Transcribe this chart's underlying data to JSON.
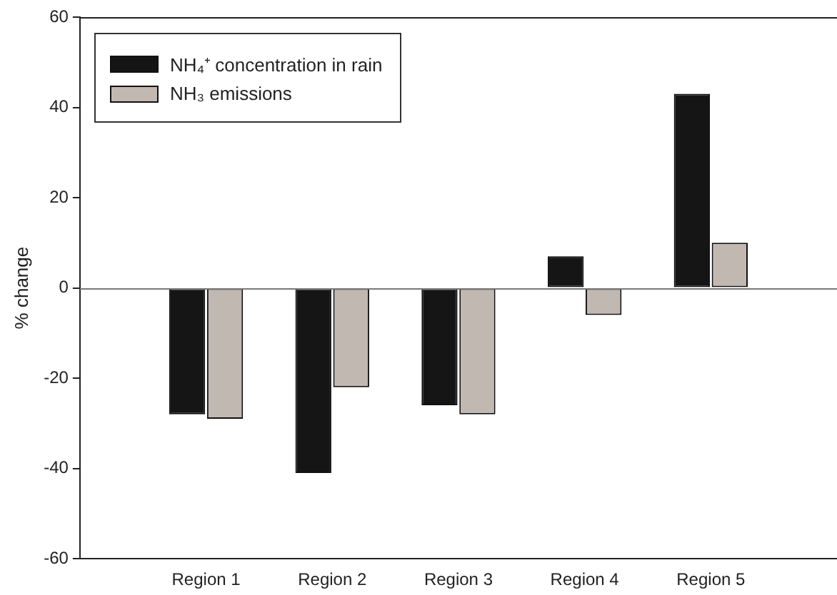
{
  "chart_data": {
    "type": "bar",
    "ylabel": "% change",
    "categories": [
      "Region 1",
      "Region 2",
      "Region 3",
      "Region 4",
      "Region 5"
    ],
    "series": [
      {
        "name": "NH₄⁺ concentration in rain",
        "color": "#151515",
        "values": [
          -28,
          -41,
          -26,
          7,
          43
        ]
      },
      {
        "name": "NH₃ emissions",
        "color": "#c2b8b2",
        "values": [
          -29,
          -22,
          -28,
          -6,
          10
        ]
      }
    ],
    "ylim": [
      -60,
      60
    ],
    "yticks": [
      -60,
      -40,
      -20,
      0,
      20,
      40,
      60
    ],
    "grid": false,
    "legend": "top left",
    "ref_lines": [
      {
        "axis": "y",
        "value": 0,
        "color": "#777777"
      }
    ]
  }
}
